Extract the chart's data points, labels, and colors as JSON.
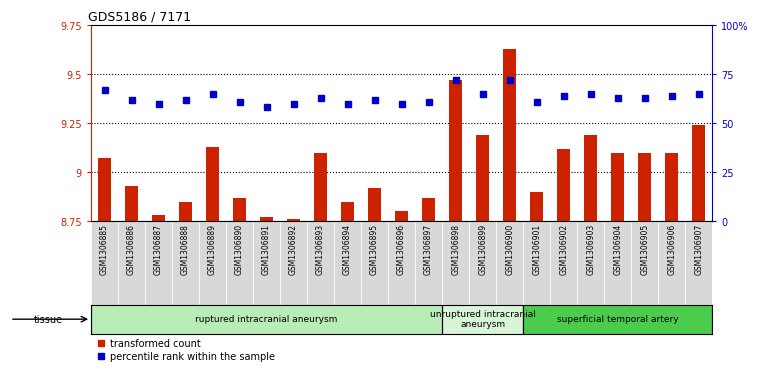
{
  "title": "GDS5186 / 7171",
  "samples": [
    "GSM1306885",
    "GSM1306886",
    "GSM1306887",
    "GSM1306888",
    "GSM1306889",
    "GSM1306890",
    "GSM1306891",
    "GSM1306892",
    "GSM1306893",
    "GSM1306894",
    "GSM1306895",
    "GSM1306896",
    "GSM1306897",
    "GSM1306898",
    "GSM1306899",
    "GSM1306900",
    "GSM1306901",
    "GSM1306902",
    "GSM1306903",
    "GSM1306904",
    "GSM1306905",
    "GSM1306906",
    "GSM1306907"
  ],
  "bar_values": [
    9.07,
    8.93,
    8.78,
    8.85,
    9.13,
    8.87,
    8.77,
    8.76,
    9.1,
    8.85,
    8.92,
    8.8,
    8.87,
    9.47,
    9.19,
    9.63,
    8.9,
    9.12,
    9.19,
    9.1,
    9.1,
    9.1,
    9.24
  ],
  "percentile_values": [
    67,
    62,
    60,
    62,
    65,
    61,
    58,
    60,
    63,
    60,
    62,
    60,
    61,
    72,
    65,
    72,
    61,
    64,
    65,
    63,
    63,
    64,
    65
  ],
  "ylim_left": [
    8.75,
    9.75
  ],
  "ylim_right": [
    0,
    100
  ],
  "yticks_left": [
    8.75,
    9.0,
    9.25,
    9.5,
    9.75
  ],
  "yticks_right": [
    0,
    25,
    50,
    75,
    100
  ],
  "ytick_labels_left": [
    "8.75",
    "9",
    "9.25",
    "9.5",
    "9.75"
  ],
  "ytick_labels_right": [
    "0",
    "25",
    "50",
    "75",
    "100%"
  ],
  "group_starts": [
    0,
    13,
    16
  ],
  "group_ends": [
    12,
    15,
    22
  ],
  "group_labels": [
    "ruptured intracranial aneurysm",
    "unruptured intracranial\naneurysm",
    "superficial temporal artery"
  ],
  "group_colors": [
    "#b8edb8",
    "#d8f5d8",
    "#4ccc4c"
  ],
  "bar_color": "#cc2200",
  "dot_color": "#0000cc",
  "bg_plot": "#ffffff",
  "tissue_label": "tissue",
  "legend_bar": "transformed count",
  "legend_dot": "percentile rank within the sample"
}
